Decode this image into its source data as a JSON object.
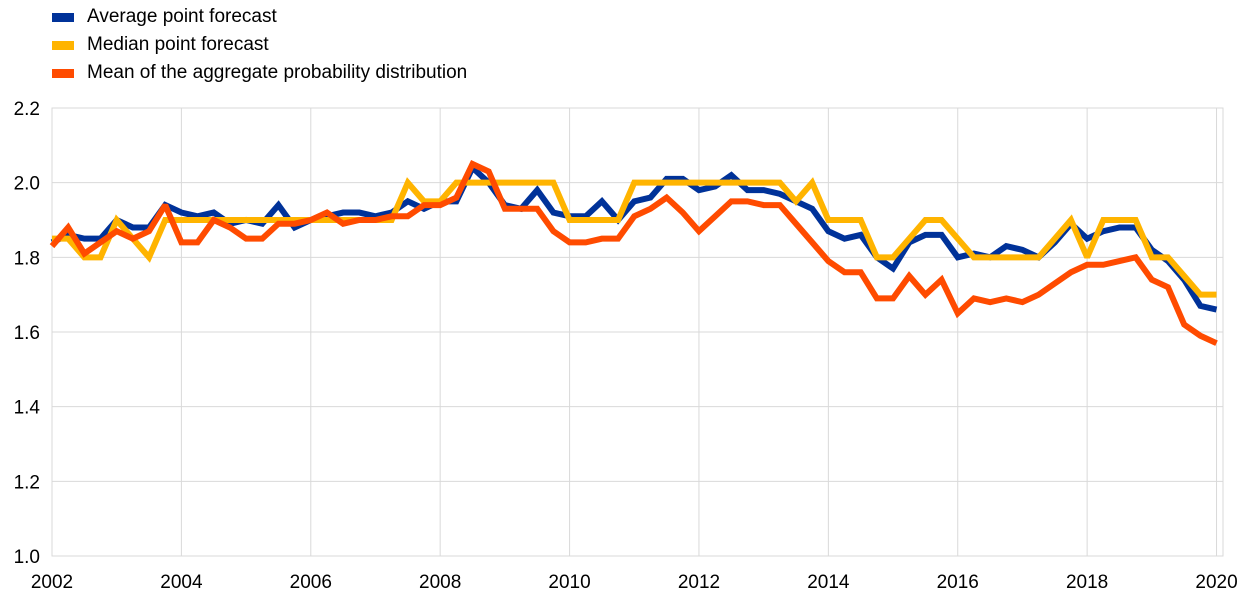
{
  "legend": {
    "items": [
      {
        "label": "Average point forecast",
        "color": "#003299"
      },
      {
        "label": "Median point forecast",
        "color": "#FFB400"
      },
      {
        "label": "Mean of the aggregate probability distribution",
        "color": "#FF4B00"
      }
    ]
  },
  "chart_data": {
    "type": "line",
    "title": "",
    "xlabel": "",
    "ylabel": "",
    "xlim": [
      2002,
      2020.1
    ],
    "ylim": [
      1.0,
      2.2
    ],
    "yticks": [
      "1.0",
      "1.2",
      "1.4",
      "1.6",
      "1.8",
      "2.0",
      "2.2"
    ],
    "xticks": [
      "2002",
      "2004",
      "2006",
      "2008",
      "2010",
      "2012",
      "2014",
      "2016",
      "2018",
      "2020"
    ],
    "grid": "horizontal and vertical",
    "legend_position": "top-left",
    "x": [
      2002.0,
      2002.25,
      2002.5,
      2002.75,
      2003.0,
      2003.25,
      2003.5,
      2003.75,
      2004.0,
      2004.25,
      2004.5,
      2004.75,
      2005.0,
      2005.25,
      2005.5,
      2005.75,
      2006.0,
      2006.25,
      2006.5,
      2006.75,
      2007.0,
      2007.25,
      2007.5,
      2007.75,
      2008.0,
      2008.25,
      2008.5,
      2008.75,
      2009.0,
      2009.25,
      2009.5,
      2009.75,
      2010.0,
      2010.25,
      2010.5,
      2010.75,
      2011.0,
      2011.25,
      2011.5,
      2011.75,
      2012.0,
      2012.25,
      2012.5,
      2012.75,
      2013.0,
      2013.25,
      2013.5,
      2013.75,
      2014.0,
      2014.25,
      2014.5,
      2014.75,
      2015.0,
      2015.25,
      2015.5,
      2015.75,
      2016.0,
      2016.25,
      2016.5,
      2016.75,
      2017.0,
      2017.25,
      2017.5,
      2017.75,
      2018.0,
      2018.25,
      2018.5,
      2018.75,
      2019.0,
      2019.25,
      2019.5,
      2019.75,
      2020.0
    ],
    "series": [
      {
        "name": "Average point forecast",
        "color": "#003299",
        "values": [
          1.84,
          1.86,
          1.85,
          1.85,
          1.9,
          1.88,
          1.88,
          1.94,
          1.92,
          1.91,
          1.92,
          1.89,
          1.9,
          1.89,
          1.94,
          1.88,
          1.9,
          1.91,
          1.92,
          1.92,
          1.91,
          1.92,
          1.95,
          1.93,
          1.95,
          1.95,
          2.04,
          2.0,
          1.94,
          1.93,
          1.98,
          1.92,
          1.91,
          1.91,
          1.95,
          1.9,
          1.95,
          1.96,
          2.01,
          2.01,
          1.98,
          1.99,
          2.02,
          1.98,
          1.98,
          1.97,
          1.95,
          1.93,
          1.87,
          1.85,
          1.86,
          1.8,
          1.77,
          1.84,
          1.86,
          1.86,
          1.8,
          1.81,
          1.8,
          1.83,
          1.82,
          1.8,
          1.84,
          1.89,
          1.85,
          1.87,
          1.88,
          1.88,
          1.82,
          1.79,
          1.74,
          1.67,
          1.66
        ]
      },
      {
        "name": "Median point forecast",
        "color": "#FFB400",
        "values": [
          1.85,
          1.85,
          1.8,
          1.8,
          1.9,
          1.85,
          1.8,
          1.9,
          1.9,
          1.9,
          1.9,
          1.9,
          1.9,
          1.9,
          1.9,
          1.9,
          1.9,
          1.9,
          1.9,
          1.9,
          1.9,
          1.9,
          2.0,
          1.95,
          1.95,
          2.0,
          2.0,
          2.0,
          2.0,
          2.0,
          2.0,
          2.0,
          1.9,
          1.9,
          1.9,
          1.9,
          2.0,
          2.0,
          2.0,
          2.0,
          2.0,
          2.0,
          2.0,
          2.0,
          2.0,
          2.0,
          1.95,
          2.0,
          1.9,
          1.9,
          1.9,
          1.8,
          1.8,
          1.85,
          1.9,
          1.9,
          1.85,
          1.8,
          1.8,
          1.8,
          1.8,
          1.8,
          1.85,
          1.9,
          1.8,
          1.9,
          1.9,
          1.9,
          1.8,
          1.8,
          1.75,
          1.7,
          1.7
        ]
      },
      {
        "name": "Mean of the aggregate probability distribution",
        "color": "#FF4B00",
        "values": [
          1.83,
          1.88,
          1.81,
          1.84,
          1.87,
          1.85,
          1.87,
          1.94,
          1.84,
          1.84,
          1.9,
          1.88,
          1.85,
          1.85,
          1.89,
          1.89,
          1.9,
          1.92,
          1.89,
          1.9,
          1.9,
          1.91,
          1.91,
          1.94,
          1.94,
          1.96,
          2.05,
          2.03,
          1.93,
          1.93,
          1.93,
          1.87,
          1.84,
          1.84,
          1.85,
          1.85,
          1.91,
          1.93,
          1.96,
          1.92,
          1.87,
          1.91,
          1.95,
          1.95,
          1.94,
          1.94,
          1.89,
          1.84,
          1.79,
          1.76,
          1.76,
          1.69,
          1.69,
          1.75,
          1.7,
          1.74,
          1.65,
          1.69,
          1.68,
          1.69,
          1.68,
          1.7,
          1.73,
          1.76,
          1.78,
          1.78,
          1.79,
          1.8,
          1.74,
          1.72,
          1.62,
          1.59,
          1.57
        ]
      }
    ]
  }
}
